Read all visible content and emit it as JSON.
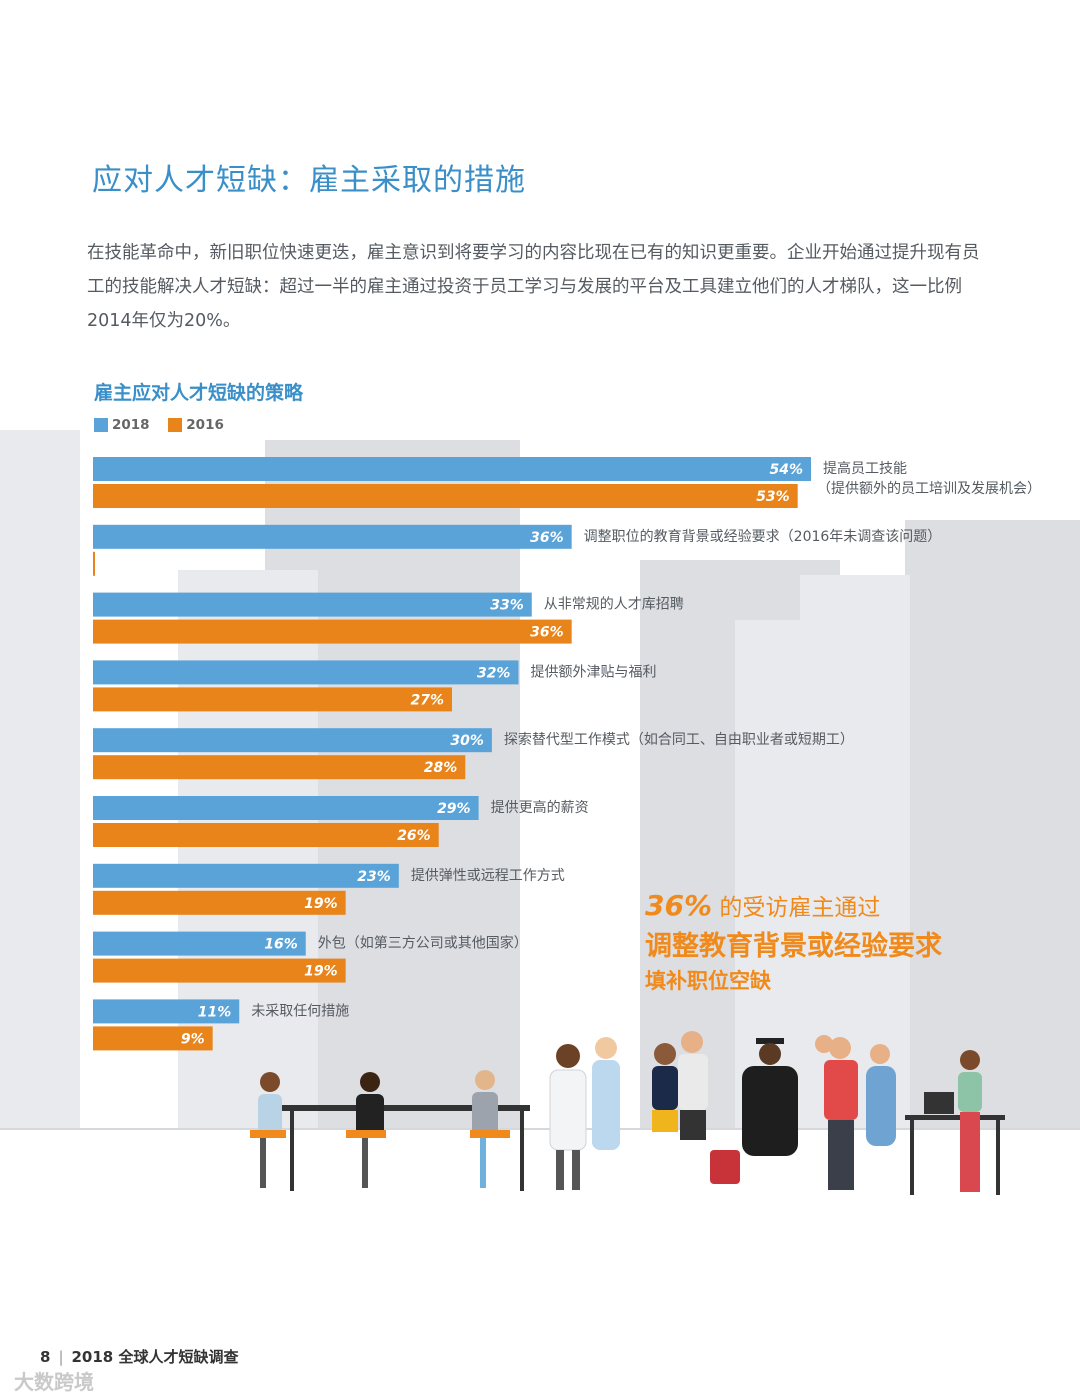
{
  "page": {
    "title": "应对人才短缺：雇主采取的措施",
    "intro": "在技能革命中，新旧职位快速更迭，雇主意识到将要学习的内容比现在已有的知识更重要。企业开始通过提升现有员工的技能解决人才短缺：超过一半的雇主通过投资于员工学习与发展的平台及工具建立他们的人才梯队，这一比例2014年仅为20%。",
    "callout": {
      "pct": "36%",
      "line1": "的受访雇主通过",
      "line2": "调整教育背景或经验要求",
      "line3": "填补职位空缺"
    },
    "footer": {
      "page_number": "8",
      "report_name": "2018 全球人才短缺调查"
    },
    "watermark": "大数跨境"
  },
  "colors": {
    "series_2018": "#5aa3d8",
    "series_2016": "#e8841a",
    "title": "#3a8fc9"
  },
  "chart_data": {
    "type": "bar",
    "orientation": "horizontal",
    "title": "雇主应对人才短缺的策略",
    "legend": [
      "2018",
      "2016"
    ],
    "legend_position": "top-left",
    "xlim": [
      0,
      54
    ],
    "categories": [
      [
        "提高员工技能",
        "（提供额外的员工培训及发展机会）"
      ],
      [
        "调整职位的教育背景或经验要求（2016年未调查该问题）"
      ],
      [
        "从非常规的人才库招聘"
      ],
      [
        "提供额外津贴与福利"
      ],
      [
        "探索替代型工作模式（如合同工、自由职业者或短期工）"
      ],
      [
        "提供更高的薪资"
      ],
      [
        "提供弹性或远程工作方式"
      ],
      [
        "外包（如第三方公司或其他国家）"
      ],
      [
        "未采取任何措施"
      ]
    ],
    "series": [
      {
        "name": "2018",
        "values": [
          54,
          36,
          33,
          32,
          30,
          29,
          23,
          16,
          11
        ],
        "labels": [
          "54%",
          "36%",
          "33%",
          "32%",
          "30%",
          "29%",
          "23%",
          "16%",
          "11%"
        ]
      },
      {
        "name": "2016",
        "values": [
          53,
          null,
          36,
          27,
          28,
          26,
          19,
          19,
          9
        ],
        "labels": [
          "53%",
          "",
          "36%",
          "27%",
          "28%",
          "26%",
          "19%",
          "19%",
          "9%"
        ]
      }
    ]
  }
}
